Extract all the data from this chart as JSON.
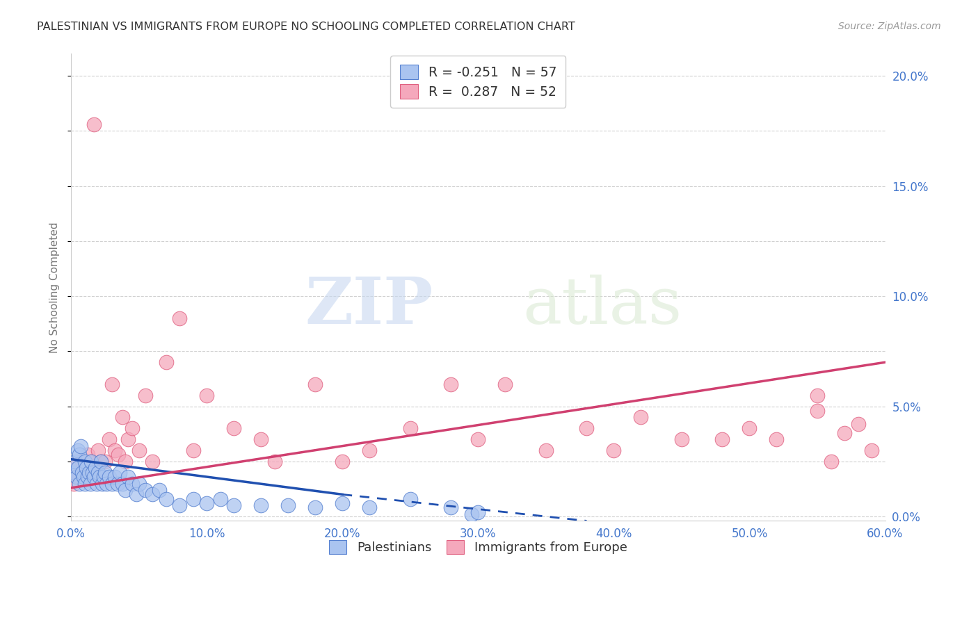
{
  "title": "PALESTINIAN VS IMMIGRANTS FROM EUROPE NO SCHOOLING COMPLETED CORRELATION CHART",
  "source": "Source: ZipAtlas.com",
  "ylabel": "No Schooling Completed",
  "xlim": [
    0.0,
    0.6
  ],
  "ylim": [
    -0.002,
    0.21
  ],
  "xticks": [
    0.0,
    0.1,
    0.2,
    0.3,
    0.4,
    0.5,
    0.6
  ],
  "xtick_labels": [
    "0.0%",
    "10.0%",
    "20.0%",
    "30.0%",
    "40.0%",
    "50.0%",
    "60.0%"
  ],
  "yticks_right": [
    0.0,
    0.05,
    0.1,
    0.15,
    0.2
  ],
  "ytick_labels_right": [
    "0.0%",
    "5.0%",
    "10.0%",
    "15.0%",
    "20.0%"
  ],
  "blue_R": -0.251,
  "blue_N": 57,
  "pink_R": 0.287,
  "pink_N": 52,
  "blue_color": "#aac4f0",
  "pink_color": "#f5a8bc",
  "blue_edge_color": "#5580d0",
  "pink_edge_color": "#e06080",
  "blue_line_color": "#2050b0",
  "pink_line_color": "#d04070",
  "blue_scatter_x": [
    0.002,
    0.003,
    0.004,
    0.005,
    0.005,
    0.006,
    0.006,
    0.007,
    0.008,
    0.009,
    0.01,
    0.01,
    0.011,
    0.012,
    0.013,
    0.014,
    0.015,
    0.016,
    0.017,
    0.018,
    0.019,
    0.02,
    0.021,
    0.022,
    0.023,
    0.024,
    0.025,
    0.026,
    0.028,
    0.03,
    0.032,
    0.034,
    0.036,
    0.038,
    0.04,
    0.042,
    0.045,
    0.048,
    0.05,
    0.055,
    0.06,
    0.065,
    0.07,
    0.08,
    0.09,
    0.1,
    0.11,
    0.12,
    0.14,
    0.16,
    0.18,
    0.2,
    0.22,
    0.25,
    0.28,
    0.295,
    0.3
  ],
  "blue_scatter_y": [
    0.02,
    0.025,
    0.018,
    0.03,
    0.022,
    0.028,
    0.015,
    0.032,
    0.02,
    0.018,
    0.025,
    0.015,
    0.022,
    0.018,
    0.02,
    0.015,
    0.025,
    0.02,
    0.018,
    0.022,
    0.015,
    0.02,
    0.018,
    0.025,
    0.015,
    0.018,
    0.02,
    0.015,
    0.018,
    0.015,
    0.018,
    0.015,
    0.02,
    0.015,
    0.012,
    0.018,
    0.015,
    0.01,
    0.015,
    0.012,
    0.01,
    0.012,
    0.008,
    0.005,
    0.008,
    0.006,
    0.008,
    0.005,
    0.005,
    0.005,
    0.004,
    0.006,
    0.004,
    0.008,
    0.004,
    0.001,
    0.002
  ],
  "pink_scatter_x": [
    0.002,
    0.004,
    0.005,
    0.006,
    0.008,
    0.01,
    0.012,
    0.015,
    0.017,
    0.018,
    0.02,
    0.022,
    0.025,
    0.028,
    0.03,
    0.032,
    0.035,
    0.038,
    0.04,
    0.042,
    0.045,
    0.05,
    0.055,
    0.06,
    0.07,
    0.08,
    0.09,
    0.1,
    0.12,
    0.14,
    0.15,
    0.18,
    0.2,
    0.22,
    0.25,
    0.28,
    0.3,
    0.32,
    0.35,
    0.38,
    0.4,
    0.42,
    0.45,
    0.48,
    0.5,
    0.52,
    0.55,
    0.56,
    0.58,
    0.59,
    0.55,
    0.57
  ],
  "pink_scatter_y": [
    0.015,
    0.02,
    0.025,
    0.018,
    0.025,
    0.022,
    0.028,
    0.025,
    0.178,
    0.02,
    0.03,
    0.025,
    0.025,
    0.035,
    0.06,
    0.03,
    0.028,
    0.045,
    0.025,
    0.035,
    0.04,
    0.03,
    0.055,
    0.025,
    0.07,
    0.09,
    0.03,
    0.055,
    0.04,
    0.035,
    0.025,
    0.06,
    0.025,
    0.03,
    0.04,
    0.06,
    0.035,
    0.06,
    0.03,
    0.04,
    0.03,
    0.045,
    0.035,
    0.035,
    0.04,
    0.035,
    0.055,
    0.025,
    0.042,
    0.03,
    0.048,
    0.038
  ],
  "blue_trend_solid": [
    0.0,
    0.2,
    0.026,
    0.01
  ],
  "blue_trend_dash": [
    0.2,
    0.38,
    0.01,
    -0.002
  ],
  "pink_trend": [
    0.0,
    0.6,
    0.013,
    0.07
  ],
  "watermark_zip": "ZIP",
  "watermark_atlas": "atlas",
  "background_color": "#ffffff",
  "grid_color": "#cccccc",
  "tick_color": "#4477cc",
  "title_color": "#333333",
  "source_color": "#999999"
}
